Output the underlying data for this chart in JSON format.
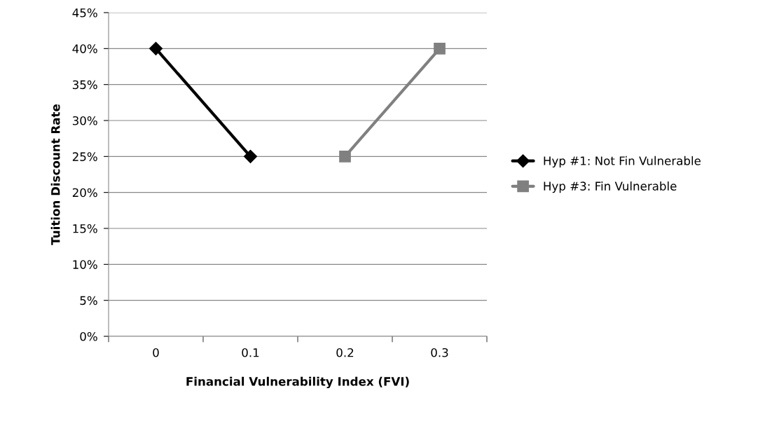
{
  "chart_data": {
    "type": "line",
    "xlabel": "Financial Vulnerability Index (FVI)",
    "ylabel": "Tuition Discount Rate",
    "categories": [
      "0",
      "0.1",
      "0.2",
      "0.3"
    ],
    "series": [
      {
        "name": "Hyp #1: Not Fin Vulnerable",
        "color": "#000000",
        "marker": "diamond",
        "values": [
          40,
          25,
          null,
          null
        ]
      },
      {
        "name": "Hyp #3: Fin Vulnerable",
        "color": "#808080",
        "marker": "square",
        "values": [
          null,
          null,
          25,
          40
        ]
      }
    ],
    "ylim": [
      0,
      45
    ],
    "yticks": [
      {
        "value": 0,
        "label": "0%"
      },
      {
        "value": 5,
        "label": "5%"
      },
      {
        "value": 10,
        "label": "10%"
      },
      {
        "value": 15,
        "label": "15%"
      },
      {
        "value": 20,
        "label": "20%"
      },
      {
        "value": 25,
        "label": "25%"
      },
      {
        "value": 30,
        "label": "30%"
      },
      {
        "value": 35,
        "label": "35%"
      },
      {
        "value": 40,
        "label": "40%"
      },
      {
        "value": 45,
        "label": "45%"
      }
    ],
    "grid": "y",
    "legend": "right",
    "line_style": "solid"
  }
}
